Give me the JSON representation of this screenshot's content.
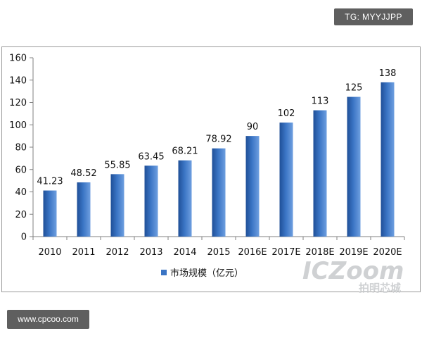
{
  "badges": {
    "tg": "TG: MYYJJPP",
    "url": "www.cpcoo.com"
  },
  "watermark": {
    "brand": "ICZoom",
    "brand_cn": "拍明芯城"
  },
  "chart_data": {
    "type": "bar",
    "title": "",
    "xlabel": "",
    "ylabel": "",
    "categories": [
      "2010",
      "2011",
      "2012",
      "2013",
      "2014",
      "2015",
      "2016E",
      "2017E",
      "2018E",
      "2019E",
      "2020E"
    ],
    "series": [
      {
        "name": "市场规模（亿元）",
        "values": [
          41.23,
          48.52,
          55.85,
          63.45,
          68.21,
          78.92,
          90,
          102,
          113,
          125,
          138
        ]
      }
    ],
    "data_labels": [
      "41.23",
      "48.52",
      "55.85",
      "63.45",
      "68.21",
      "78.92",
      "90",
      "102",
      "113",
      "125",
      "138"
    ],
    "ylim": [
      0,
      160
    ],
    "yticks": [
      0,
      20,
      40,
      60,
      80,
      100,
      120,
      140,
      160
    ],
    "grid": false,
    "legend": "bottom",
    "colors": {
      "bar": "#3a74c4",
      "bar_dark": "#1f4f97",
      "bar_light": "#6e9fe0"
    }
  }
}
